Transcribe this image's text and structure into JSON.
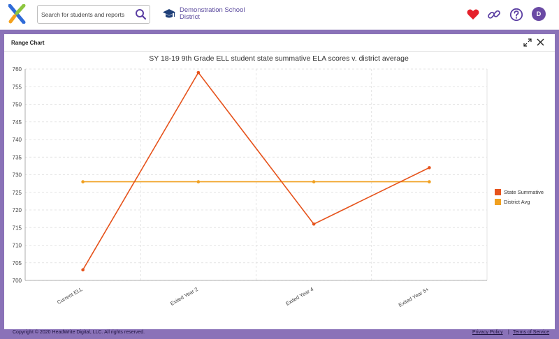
{
  "header": {
    "search_placeholder": "Search for students and reports",
    "school_name": "Demonstration School District",
    "avatar_initial": "D"
  },
  "panel": {
    "title": "Range Chart"
  },
  "chart_data": {
    "type": "line",
    "title": "SY 18-19 9th Grade ELL student state summative ELA scores v. district average",
    "categories": [
      "Current ELL",
      "Exited Year 2",
      "Exited Year 4",
      "Exited Year 5+"
    ],
    "series": [
      {
        "name": "State Summative",
        "color": "#e6531c",
        "values": [
          703,
          759,
          716,
          732
        ]
      },
      {
        "name": "District Avg",
        "color": "#f0a020",
        "values": [
          728,
          728,
          728,
          728
        ]
      }
    ],
    "xlabel": "",
    "ylabel": "",
    "ylim": [
      700,
      760
    ],
    "yticks": [
      700,
      705,
      710,
      715,
      720,
      725,
      730,
      735,
      740,
      745,
      750,
      755,
      760
    ],
    "grid": true,
    "legend_position": "right"
  },
  "footer": {
    "copyright": "Copyright © 2020 HeadWrite Digital, LLC. All rights reserved.",
    "privacy": "Privacy Policy",
    "separator": "|",
    "terms": "Terms of Service"
  }
}
